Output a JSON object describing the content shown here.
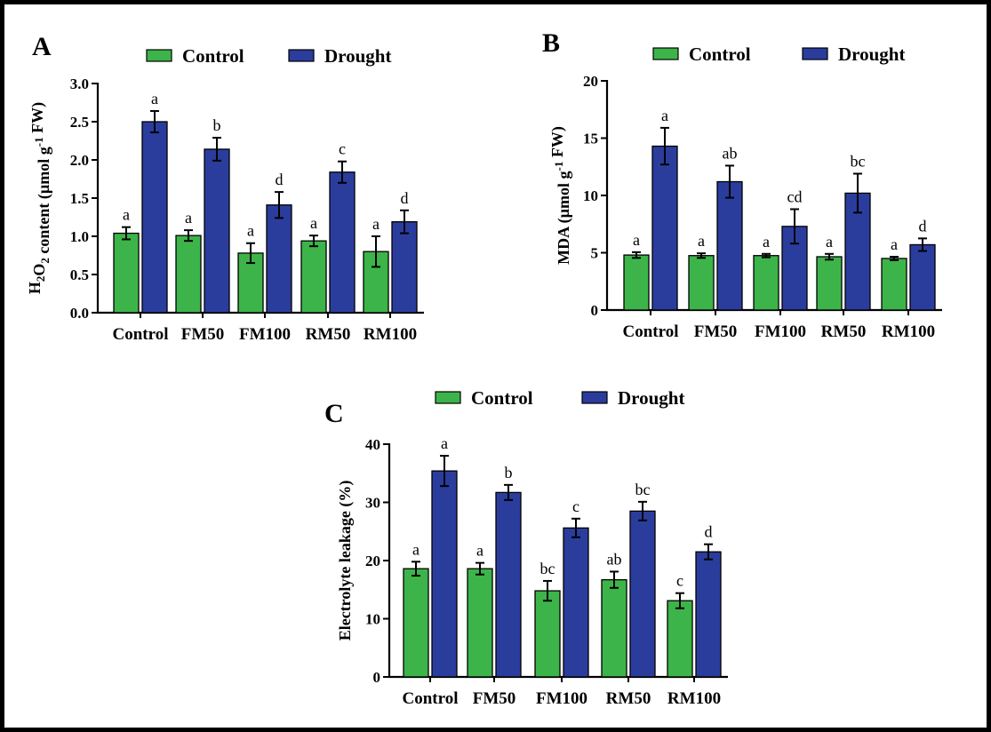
{
  "colors": {
    "control": "#3db44a",
    "drought": "#2b3d9c",
    "axis": "#000000"
  },
  "legend": {
    "control": "Control",
    "drought": "Drought"
  },
  "chart_data": [
    {
      "panel": "A",
      "type": "bar",
      "ylabel_parts": [
        "H",
        "2",
        "O",
        "2",
        " content (µmol g",
        "-1",
        " FW)"
      ],
      "ylim": [
        0,
        3.0
      ],
      "yticks": [
        "0.0",
        "0.5",
        "1.0",
        "1.5",
        "2.0",
        "2.5",
        "3.0"
      ],
      "categories": [
        "Control",
        "FM50",
        "FM100",
        "RM50",
        "RM100"
      ],
      "series": [
        {
          "name": "Control",
          "values": [
            1.04,
            1.01,
            0.78,
            0.94,
            0.8
          ],
          "errors": [
            0.08,
            0.07,
            0.13,
            0.07,
            0.2
          ],
          "letters": [
            "a",
            "a",
            "a",
            "a",
            "a"
          ]
        },
        {
          "name": "Drought",
          "values": [
            2.5,
            2.14,
            1.41,
            1.84,
            1.19
          ],
          "errors": [
            0.14,
            0.15,
            0.17,
            0.14,
            0.15
          ],
          "letters": [
            "a",
            "b",
            "d",
            "c",
            "d"
          ]
        }
      ]
    },
    {
      "panel": "B",
      "type": "bar",
      "ylabel_parts": [
        "MDA (µmol g",
        "-1",
        " FW)"
      ],
      "ylim": [
        0,
        20
      ],
      "yticks": [
        "0",
        "5",
        "10",
        "15",
        "20"
      ],
      "categories": [
        "Control",
        "FM50",
        "FM100",
        "RM50",
        "RM100"
      ],
      "series": [
        {
          "name": "Control",
          "values": [
            4.8,
            4.75,
            4.75,
            4.65,
            4.5
          ],
          "errors": [
            0.25,
            0.2,
            0.15,
            0.25,
            0.15
          ],
          "letters": [
            "a",
            "a",
            "a",
            "a",
            "a"
          ]
        },
        {
          "name": "Drought",
          "values": [
            14.3,
            11.2,
            7.3,
            10.2,
            5.7
          ],
          "errors": [
            1.6,
            1.4,
            1.5,
            1.7,
            0.55
          ],
          "letters": [
            "a",
            "ab",
            "cd",
            "bc",
            "d"
          ]
        }
      ]
    },
    {
      "panel": "C",
      "type": "bar",
      "ylabel_parts": [
        "Electrolyte leakage (%)"
      ],
      "ylim": [
        0,
        40
      ],
      "yticks": [
        "0",
        "10",
        "20",
        "30",
        "40"
      ],
      "categories": [
        "Control",
        "FM50",
        "FM100",
        "RM50",
        "RM100"
      ],
      "series": [
        {
          "name": "Control",
          "values": [
            18.6,
            18.6,
            14.8,
            16.7,
            13.1
          ],
          "errors": [
            1.2,
            1.0,
            1.7,
            1.4,
            1.3
          ],
          "letters": [
            "a",
            "a",
            "bc",
            "ab",
            "c"
          ]
        },
        {
          "name": "Drought",
          "values": [
            35.4,
            31.7,
            25.6,
            28.5,
            21.5
          ],
          "errors": [
            2.6,
            1.3,
            1.6,
            1.6,
            1.3
          ],
          "letters": [
            "a",
            "b",
            "c",
            "bc",
            "d"
          ]
        }
      ]
    }
  ]
}
